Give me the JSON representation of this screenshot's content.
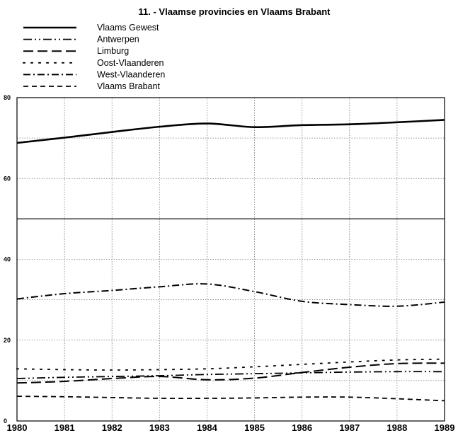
{
  "chart_data": {
    "type": "line",
    "title": "11. - Vlaamse provincies en Vlaams Brabant",
    "xlabel": "",
    "ylabel": "",
    "x": [
      "1980",
      "1981",
      "1982",
      "1983",
      "1984",
      "1985",
      "1986",
      "1987",
      "1988",
      "1989"
    ],
    "ylim": [
      0,
      80
    ],
    "yticks": [
      "0",
      "20",
      "40",
      "60",
      "80"
    ],
    "grid": true,
    "legend_position": "top-left",
    "series": [
      {
        "name": "Vlaams Gewest",
        "values": [
          68.8,
          70.1,
          71.5,
          72.8,
          73.6,
          72.7,
          73.2,
          73.4,
          73.9,
          74.5
        ]
      },
      {
        "name": "Antwerpen",
        "values": [
          10.5,
          10.8,
          11.0,
          11.2,
          11.5,
          11.7,
          11.9,
          12.1,
          12.2,
          12.2
        ]
      },
      {
        "name": "Limburg",
        "values": [
          9.4,
          9.8,
          10.5,
          11.0,
          10.2,
          10.6,
          12.0,
          13.3,
          14.2,
          14.3
        ]
      },
      {
        "name": "Oost-Vlaanderen",
        "values": [
          12.9,
          12.7,
          12.6,
          12.7,
          12.9,
          13.4,
          14.0,
          14.6,
          15.1,
          15.3
        ]
      },
      {
        "name": "West-Vlaanderen",
        "values": [
          30.2,
          31.5,
          32.3,
          33.2,
          33.9,
          32.0,
          29.6,
          28.8,
          28.4,
          29.4
        ]
      },
      {
        "name": "Vlaams Brabant",
        "values": [
          6.1,
          6.0,
          5.8,
          5.6,
          5.6,
          5.7,
          5.9,
          5.9,
          5.5,
          5.0
        ]
      }
    ]
  }
}
